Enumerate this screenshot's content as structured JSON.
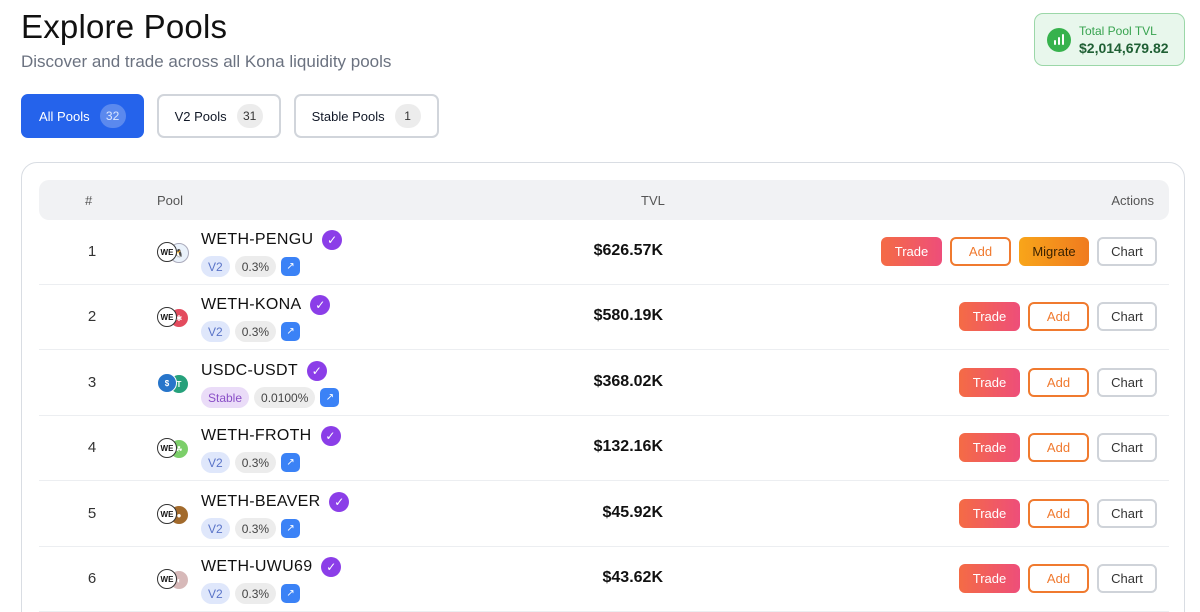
{
  "header": {
    "title": "Explore Pools",
    "subtitle": "Discover and trade across all Kona liquidity pools"
  },
  "tvl_card": {
    "label": "Total Pool TVL",
    "value": "$2,014,679.82",
    "icon": "bar-chart-icon"
  },
  "filters": [
    {
      "label": "All Pools",
      "count": "32",
      "active": true
    },
    {
      "label": "V2 Pools",
      "count": "31",
      "active": false
    },
    {
      "label": "Stable Pools",
      "count": "1",
      "active": false
    }
  ],
  "table": {
    "headers": {
      "num": "#",
      "pool": "Pool",
      "tvl": "TVL",
      "actions": "Actions"
    },
    "actions": {
      "trade": "Trade",
      "add": "Add",
      "migrate": "Migrate",
      "chart": "Chart"
    },
    "rows": [
      {
        "num": "1",
        "name": "WETH-PENGU",
        "type": "V2",
        "fee": "0.3%",
        "tvl": "$626.57K",
        "migrate": true,
        "coin_a": {
          "label": "WE",
          "color": "#ffffff"
        },
        "coin_b": {
          "label": "🐧",
          "color": "#eaf2fb"
        }
      },
      {
        "num": "2",
        "name": "WETH-KONA",
        "type": "V2",
        "fee": "0.3%",
        "tvl": "$580.19K",
        "migrate": false,
        "coin_a": {
          "label": "WE",
          "color": "#ffffff"
        },
        "coin_b": {
          "label": "✱",
          "color": "#e34b5e"
        }
      },
      {
        "num": "3",
        "name": "USDC-USDT",
        "type": "Stable",
        "fee": "0.0100%",
        "tvl": "$368.02K",
        "migrate": false,
        "coin_a": {
          "label": "$",
          "color": "#2775ca"
        },
        "coin_b": {
          "label": "T",
          "color": "#26a17b"
        }
      },
      {
        "num": "4",
        "name": "WETH-FROTH",
        "type": "V2",
        "fee": "0.3%",
        "tvl": "$132.16K",
        "migrate": false,
        "coin_a": {
          "label": "WE",
          "color": "#ffffff"
        },
        "coin_b": {
          "label": "☘",
          "color": "#7ccf6a"
        }
      },
      {
        "num": "5",
        "name": "WETH-BEAVER",
        "type": "V2",
        "fee": "0.3%",
        "tvl": "$45.92K",
        "migrate": false,
        "coin_a": {
          "label": "WE",
          "color": "#ffffff"
        },
        "coin_b": {
          "label": "●",
          "color": "#a26a2c"
        }
      },
      {
        "num": "6",
        "name": "WETH-UWU69",
        "type": "V2",
        "fee": "0.3%",
        "tvl": "$43.62K",
        "migrate": false,
        "coin_a": {
          "label": "WE",
          "color": "#ffffff"
        },
        "coin_b": {
          "label": "◐",
          "color": "#d7b9b9"
        }
      }
    ]
  }
}
